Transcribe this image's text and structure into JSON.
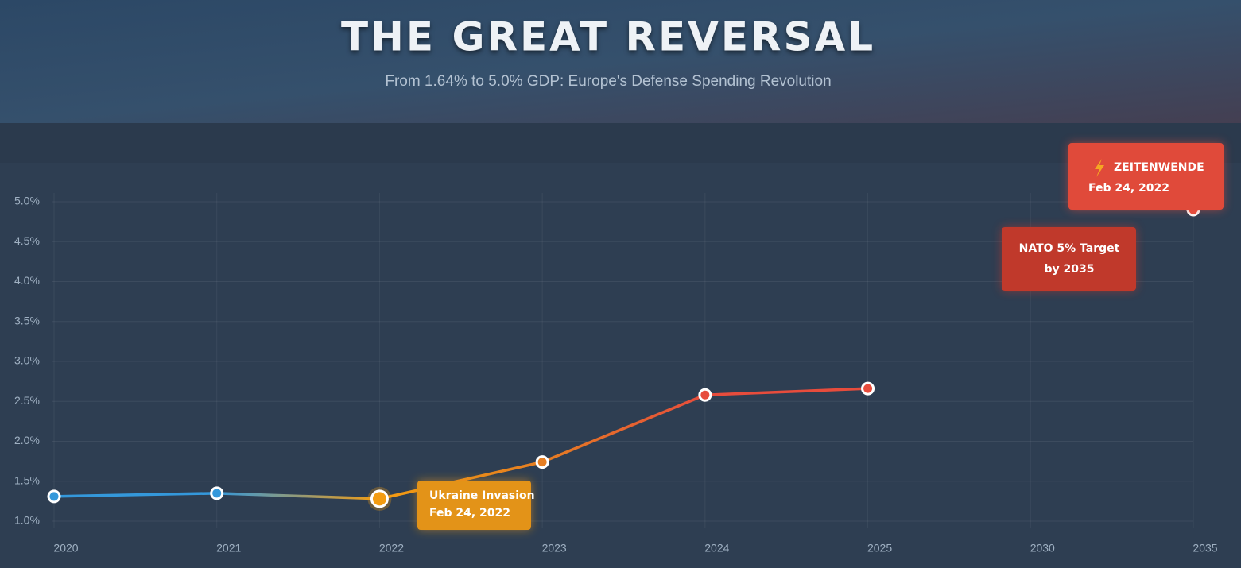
{
  "chart_data": {
    "type": "line",
    "title": "THE GREAT REVERSAL",
    "subtitle": "From 1.64% to 5.0% GDP: Europe's Defense Spending Revolution",
    "categories": [
      "2020",
      "2021",
      "2022",
      "2023",
      "2024",
      "2025",
      "2030",
      "2035"
    ],
    "series": [
      {
        "values": [
          1.31,
          1.35,
          1.28,
          1.74,
          2.58,
          2.66,
          null,
          4.9
        ],
        "point_colors": [
          "#3498db",
          "#3498db",
          "#f39c12",
          "#e67e22",
          "#e74c3c",
          "#e74c3c",
          null,
          "#e74c3c"
        ]
      }
    ],
    "ylim": [
      1,
      5
    ],
    "yticks": [
      {
        "value": 1,
        "label": "1.0%"
      },
      {
        "value": 1.5,
        "label": "1.5%"
      },
      {
        "value": 2,
        "label": "2.0%"
      },
      {
        "value": 2.5,
        "label": "2.5%"
      },
      {
        "value": 3,
        "label": "3.0%"
      },
      {
        "value": 3.5,
        "label": "3.5%"
      },
      {
        "value": 4,
        "label": "4.0%"
      },
      {
        "value": 4.5,
        "label": "4.5%"
      },
      {
        "value": 5,
        "label": "5.0%"
      }
    ],
    "grid": true,
    "annotations": [
      {
        "title": "Ukraine Invasion",
        "subtitle": "Feb 24, 2022",
        "color": "#e39318"
      },
      {
        "title": "ZEITENWENDE",
        "subtitle": "Feb 24, 2022",
        "color": "#e04a3a"
      },
      {
        "title": "NATO 5% Target",
        "subtitle": "by 2035",
        "color": "#c0392b"
      }
    ]
  }
}
